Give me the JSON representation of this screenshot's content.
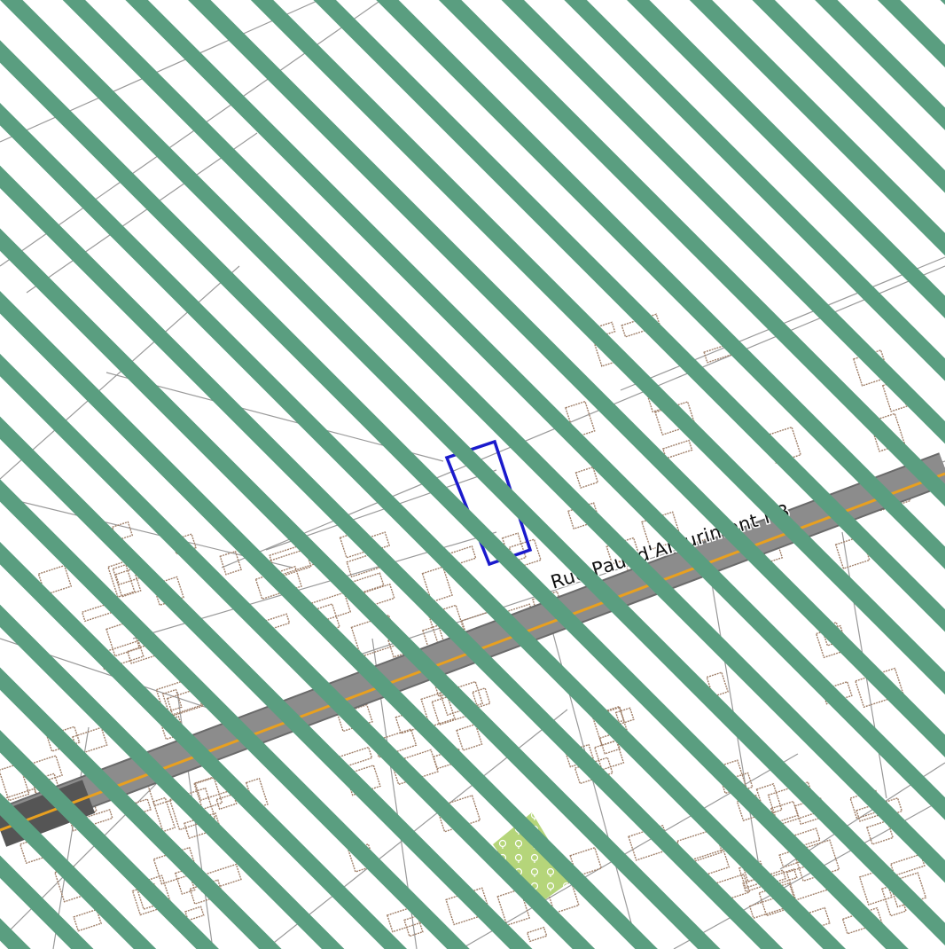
{
  "map": {
    "type": "street-map",
    "overlay": {
      "pattern": "diagonal-stripes",
      "color": "#5a9e80"
    },
    "colors": {
      "background": "#ffffff",
      "building_outline": "#a0806a",
      "parcel_outline": "#9a9a9a",
      "road_fill": "#8c8c8c",
      "road_casing": "#6a6a6a",
      "road_dark": "#555555",
      "road_centerline": "#e8a020",
      "selection": "#1a1acc",
      "marker": "#d0208a",
      "park": "#b5d57a"
    },
    "road_label": {
      "text": "Rue Paul d'Amurimont N3"
    },
    "selection": {
      "shape": "rectangle",
      "state": "highlighted"
    },
    "marker": {
      "icon": "point-marker-icon"
    },
    "park": {
      "icon": "tree-pattern-icon"
    }
  }
}
